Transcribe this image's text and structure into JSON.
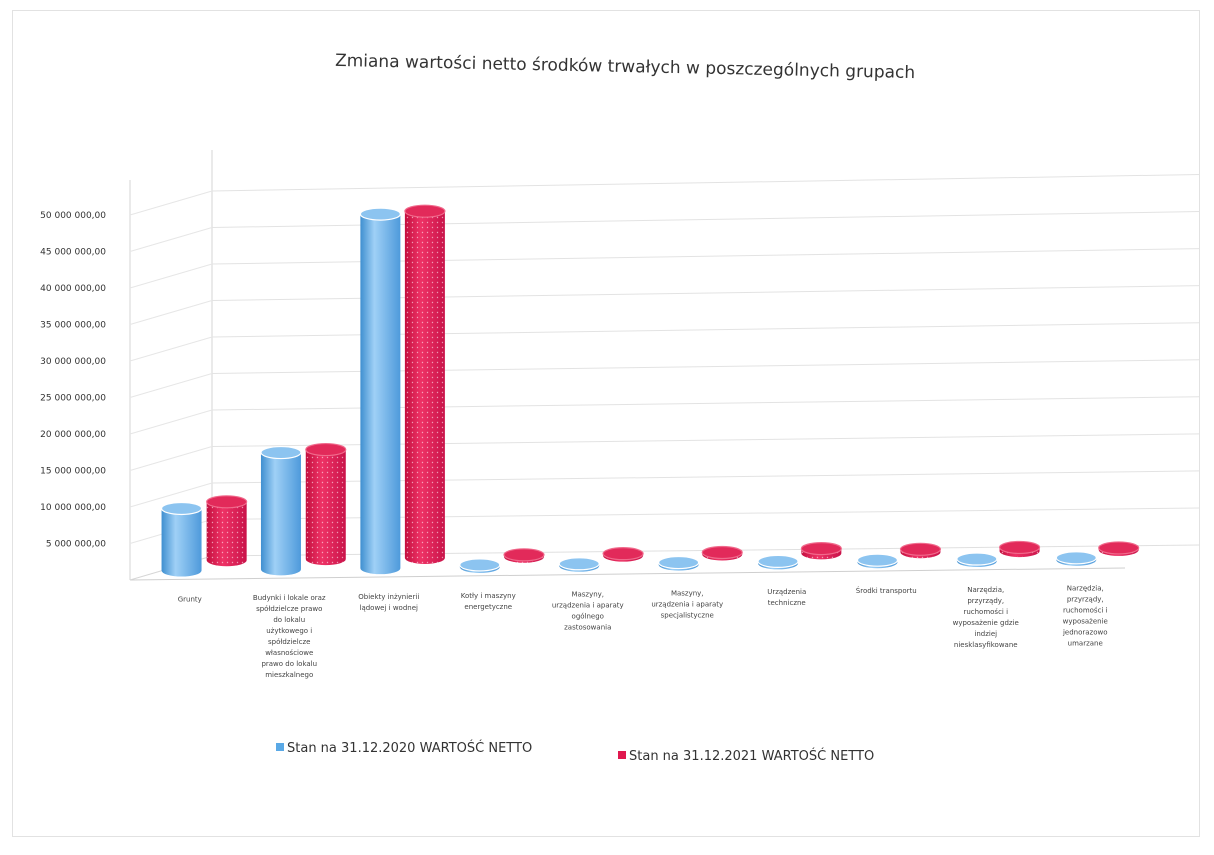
{
  "chart_data": {
    "type": "bar",
    "title": "Zmiana wartości netto środków trwałych w poszczególnych grupach",
    "xlabel": "",
    "ylabel": "",
    "ylim": [
      0,
      50000000
    ],
    "y_ticks": [
      {
        "value": 5000000,
        "label": "5 000 000,00"
      },
      {
        "value": 10000000,
        "label": "10 000 000,00"
      },
      {
        "value": 15000000,
        "label": "15 000 000,00"
      },
      {
        "value": 20000000,
        "label": "20 000 000,00"
      },
      {
        "value": 25000000,
        "label": "25 000 000,00"
      },
      {
        "value": 30000000,
        "label": "30 000 000,00"
      },
      {
        "value": 35000000,
        "label": "35 000 000,00"
      },
      {
        "value": 40000000,
        "label": "40 000 000,00"
      },
      {
        "value": 45000000,
        "label": "45 000 000,00"
      },
      {
        "value": 50000000,
        "label": "50 000 000,00"
      }
    ],
    "categories": [
      "Grunty",
      "Budynki i lokale oraz spółdzielcze prawo do lokalu użytkowego i spółdzielcze własnościowe prawo do lokalu mieszkalnego",
      "Obiekty inżynierii lądowej i wodnej",
      "Kotły i maszyny energetyczne",
      "Maszyny, urządzenia i aparaty ogólnego zastosowania",
      "Maszyny, urządzenia i aparaty specjalistyczne",
      "Urządzenia techniczne",
      "Środki transportu",
      "Narzędzia, przyrządy, ruchomości i wyposażenie gdzie indziej niesklasyfikowane",
      "Narzędzia, przyrządy, ruchomości i wyposażenie jednorazowo umarzane"
    ],
    "category_lines": [
      [
        "Grunty"
      ],
      [
        "Budynki i lokale oraz",
        "spółdzielcze prawo",
        "do lokalu",
        "użytkowego i",
        "spółdzielcze",
        "własnościowe",
        "prawo do lokalu",
        "mieszkalnego"
      ],
      [
        "Obiekty inżynierii",
        "lądowej i wodnej"
      ],
      [
        "Kotły i maszyny",
        "energetyczne"
      ],
      [
        "Maszyny,",
        "urządzenia i aparaty",
        "ogólnego",
        "zastosowania"
      ],
      [
        "Maszyny,",
        "urządzenia i aparaty",
        "specjalistyczne"
      ],
      [
        "Urządzenia",
        "techniczne"
      ],
      [
        "Środki transportu"
      ],
      [
        "Narzędzia,",
        "przyrządy,",
        "ruchomości i",
        "wyposażenie gdzie",
        "indziej",
        "niesklasyfikowane"
      ],
      [
        "Narzędzia,",
        "przyrządy,",
        "ruchomości i",
        "wyposażenie",
        "jednorazowo",
        "umarzane"
      ]
    ],
    "series": [
      {
        "name": "Stan na 31.12.2020 WARTOŚĆ  NETTO",
        "color": "#5aa9e6",
        "values": [
          8500000,
          16000000,
          48500000,
          100000,
          150000,
          120000,
          250000,
          200000,
          100000,
          50000
        ]
      },
      {
        "name": "Stan na 31.12.2021 WARTOŚĆ  NETTO",
        "color": "#e0184f",
        "values": [
          8000000,
          15000000,
          47500000,
          200000,
          250000,
          150000,
          650000,
          400000,
          500000,
          150000
        ]
      }
    ],
    "grid": true,
    "legend_position": "bottom"
  }
}
